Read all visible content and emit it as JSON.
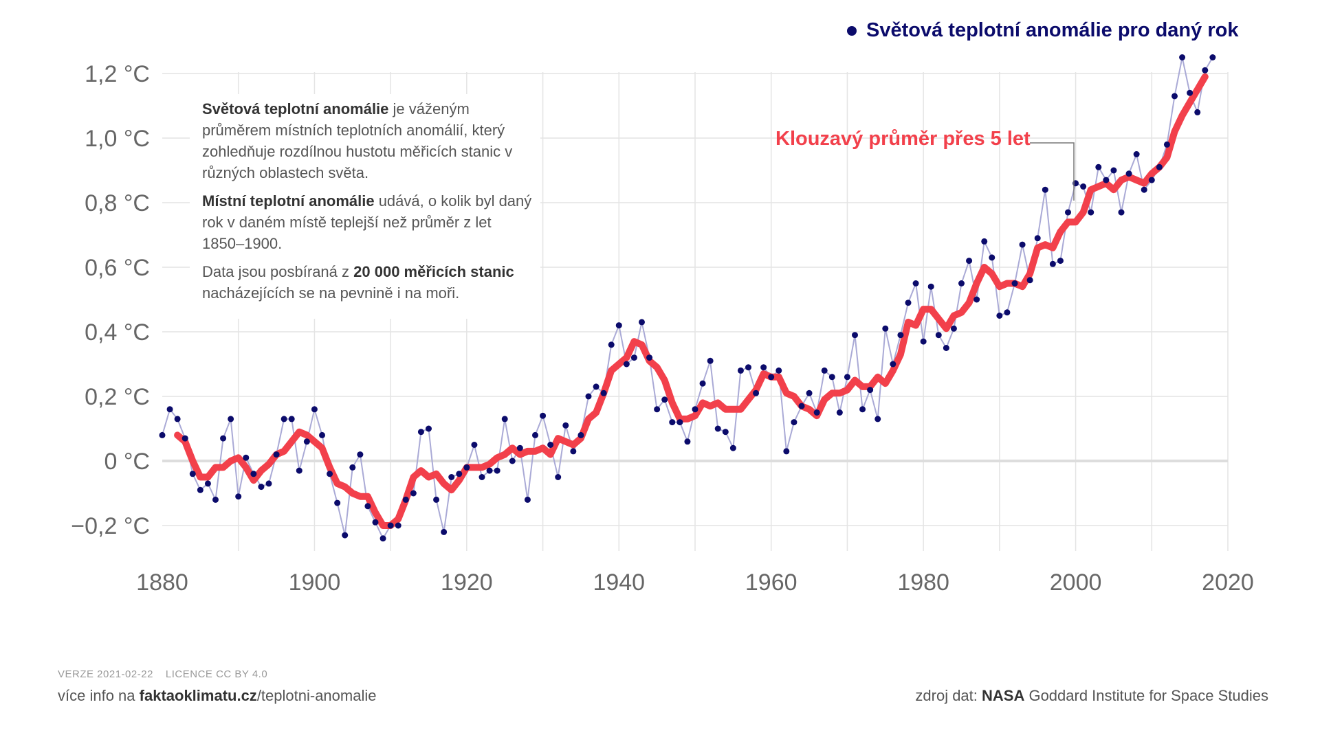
{
  "legend": {
    "label": "Světová teplotní anomálie pro daný rok"
  },
  "note": {
    "p1_bold": "Světová teplotní anomálie",
    "p1_text": " je váženým průměrem místních teplotních anomálií, který zohledňuje rozdílnou hustotu měřicích stanic v různých oblastech světa.",
    "p2_bold": "Místní teplotní anomálie",
    "p2_text": " udává, o kolik byl daný rok v daném místě teplejší než průměr z let 1850–1900.",
    "p3_text1": "Data jsou posbíraná z ",
    "p3_bold": "20 000 měřicích stanic",
    "p3_text2": " nacházejících se na pevnině i na moři."
  },
  "moving_average_label": "Klouzavý průměr přes 5 let",
  "footer": {
    "version": "VERZE 2021-02-22",
    "license": "LICENCE CC BY 4.0",
    "more_prefix": "více info na ",
    "more_bold": "faktaoklimatu.cz",
    "more_suffix": "/teplotni-anomalie",
    "source_prefix": "zdroj dat: ",
    "source_bold": "NASA",
    "source_suffix": " Goddard Institute for Space Studies"
  },
  "colors": {
    "points": "#0b0b6b",
    "annual_line": "#aaaad6",
    "moving_average": "#f2404b",
    "grid": "#e4e4e4",
    "zero_line": "#dddddd",
    "tick_text": "#666666"
  },
  "chart_data": {
    "type": "scatter",
    "title": "Světová teplotní anomálie",
    "xlabel": "",
    "ylabel": "",
    "xlim": [
      1880,
      2020
    ],
    "ylim": [
      -0.3,
      1.2
    ],
    "x_ticks": [
      1880,
      1900,
      1920,
      1940,
      1960,
      1980,
      2000,
      2020
    ],
    "x_tick_labels": [
      "1880",
      "1900",
      "1920",
      "1940",
      "1960",
      "1980",
      "2000",
      "2020"
    ],
    "y_ticks": [
      -0.2,
      0,
      0.2,
      0.4,
      0.6,
      0.8,
      1.0,
      1.2
    ],
    "y_tick_labels": [
      "−0,2 °C",
      "0 °C",
      "0,2 °C",
      "0,4 °C",
      "0,6 °C",
      "0,8 °C",
      "1,0 °C",
      "1,2 °C"
    ],
    "series": [
      {
        "name": "Světová teplotní anomálie pro daný rok",
        "type": "scatter",
        "x_start": 1880,
        "values": [
          0.08,
          0.16,
          0.13,
          0.07,
          -0.04,
          -0.09,
          -0.07,
          -0.12,
          0.07,
          0.13,
          -0.11,
          0.01,
          -0.04,
          -0.08,
          -0.07,
          0.02,
          0.13,
          0.13,
          -0.03,
          0.06,
          0.16,
          0.08,
          -0.04,
          -0.13,
          -0.23,
          -0.02,
          0.02,
          -0.14,
          -0.19,
          -0.24,
          -0.2,
          -0.2,
          -0.12,
          -0.1,
          0.09,
          0.1,
          -0.12,
          -0.22,
          -0.05,
          -0.04,
          -0.02,
          0.05,
          -0.05,
          -0.03,
          -0.03,
          0.13,
          0.0,
          0.04,
          -0.12,
          0.08,
          0.14,
          0.05,
          -0.05,
          0.11,
          0.03,
          0.08,
          0.2,
          0.23,
          0.21,
          0.36,
          0.42,
          0.3,
          0.32,
          0.43,
          0.32,
          0.16,
          0.19,
          0.12,
          0.12,
          0.06,
          0.16,
          0.24,
          0.31,
          0.1,
          0.09,
          0.04,
          0.28,
          0.29,
          0.21,
          0.29,
          0.26,
          0.28,
          0.03,
          0.12,
          0.17,
          0.21,
          0.15,
          0.28,
          0.26,
          0.15,
          0.26,
          0.39,
          0.16,
          0.22,
          0.13,
          0.41,
          0.3,
          0.39,
          0.49,
          0.55,
          0.37,
          0.54,
          0.39,
          0.35,
          0.41,
          0.55,
          0.62,
          0.5,
          0.68,
          0.63,
          0.45,
          0.46,
          0.55,
          0.67,
          0.56,
          0.69,
          0.84,
          0.61,
          0.62,
          0.77,
          0.86,
          0.85,
          0.77,
          0.91,
          0.87,
          0.9,
          0.77,
          0.89,
          0.95,
          0.84,
          0.87,
          0.91,
          0.98,
          1.13,
          1.25,
          1.14,
          1.08,
          1.21,
          1.25
        ]
      },
      {
        "name": "Klouzavý průměr přes 5 let",
        "type": "line",
        "x_start": 1882,
        "values": [
          0.08,
          0.06,
          0.0,
          -0.05,
          -0.05,
          -0.02,
          -0.02,
          0.0,
          0.01,
          -0.02,
          -0.06,
          -0.03,
          -0.01,
          0.02,
          0.03,
          0.06,
          0.09,
          0.08,
          0.06,
          0.04,
          -0.02,
          -0.07,
          -0.08,
          -0.1,
          -0.11,
          -0.11,
          -0.16,
          -0.2,
          -0.2,
          -0.18,
          -0.12,
          -0.05,
          -0.03,
          -0.05,
          -0.04,
          -0.07,
          -0.09,
          -0.06,
          -0.02,
          -0.02,
          -0.02,
          -0.01,
          0.01,
          0.02,
          0.04,
          0.02,
          0.03,
          0.03,
          0.04,
          0.02,
          0.07,
          0.06,
          0.05,
          0.07,
          0.13,
          0.15,
          0.21,
          0.28,
          0.3,
          0.32,
          0.37,
          0.36,
          0.31,
          0.29,
          0.25,
          0.18,
          0.13,
          0.13,
          0.14,
          0.18,
          0.17,
          0.18,
          0.16,
          0.16,
          0.16,
          0.19,
          0.22,
          0.27,
          0.26,
          0.26,
          0.21,
          0.2,
          0.17,
          0.16,
          0.14,
          0.19,
          0.21,
          0.21,
          0.22,
          0.25,
          0.23,
          0.23,
          0.26,
          0.24,
          0.28,
          0.33,
          0.43,
          0.42,
          0.47,
          0.47,
          0.44,
          0.41,
          0.45,
          0.46,
          0.49,
          0.55,
          0.6,
          0.58,
          0.54,
          0.55,
          0.55,
          0.54,
          0.58,
          0.66,
          0.67,
          0.66,
          0.71,
          0.74,
          0.74,
          0.77,
          0.84,
          0.85,
          0.86,
          0.84,
          0.87,
          0.88,
          0.87,
          0.86,
          0.89,
          0.91,
          0.94,
          1.02,
          1.07,
          1.11,
          1.15,
          1.19
        ]
      }
    ],
    "legend": "top-right",
    "grid": true
  }
}
